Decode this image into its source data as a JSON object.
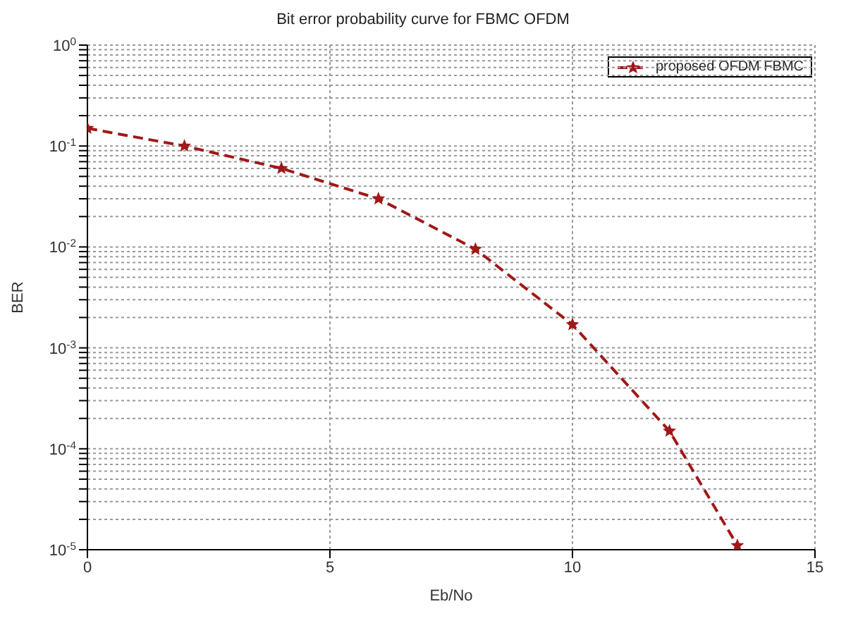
{
  "chart_data": {
    "type": "line",
    "title": "Bit error probability curve for  FBMC OFDM",
    "xlabel": "Eb/No",
    "ylabel": "BER",
    "x": [
      0,
      2,
      4,
      6,
      8,
      10,
      12,
      13.4
    ],
    "series": [
      {
        "name": "proposed OFDM FBMC",
        "color": "#a01818",
        "values": [
          0.15,
          0.1,
          0.06,
          0.03,
          0.0095,
          0.0017,
          0.00015,
          1.1e-05
        ]
      }
    ],
    "xlim": [
      0,
      15
    ],
    "xticks": [
      0,
      5,
      10,
      15
    ],
    "ylim": [
      1e-05,
      1
    ],
    "yticks": [
      {
        "value": 1,
        "label": "10$^{0}$"
      },
      {
        "value": 0.9,
        "label": null
      },
      {
        "value": 0.8,
        "label": null
      },
      {
        "value": 0.7,
        "label": null
      },
      {
        "value": 0.6,
        "label": null
      },
      {
        "value": 0.5,
        "label": null
      },
      {
        "value": 0.4,
        "label": null
      },
      {
        "value": 0.3,
        "label": null
      },
      {
        "value": 0.2,
        "label": null
      },
      {
        "value": 0.1,
        "label": "10$^{-1}$"
      },
      {
        "value": 0.09,
        "label": null
      },
      {
        "value": 0.08,
        "label": null
      },
      {
        "value": 0.07,
        "label": null
      },
      {
        "value": 0.06,
        "label": null
      },
      {
        "value": 0.05,
        "label": null
      },
      {
        "value": 0.04,
        "label": null
      },
      {
        "value": 0.03,
        "label": null
      },
      {
        "value": 0.02,
        "label": null
      },
      {
        "value": 0.01,
        "label": "10$^{-2}$"
      },
      {
        "value": 0.009,
        "label": null
      },
      {
        "value": 0.008,
        "label": null
      },
      {
        "value": 0.007,
        "label": null
      },
      {
        "value": 0.006,
        "label": null
      },
      {
        "value": 0.005,
        "label": null
      },
      {
        "value": 0.004,
        "label": null
      },
      {
        "value": 0.003,
        "label": null
      },
      {
        "value": 0.002,
        "label": null
      },
      {
        "value": 0.001,
        "label": "10$^{-3}$"
      },
      {
        "value": 0.0009,
        "label": null
      },
      {
        "value": 0.0008,
        "label": null
      },
      {
        "value": 0.0007,
        "label": null
      },
      {
        "value": 0.0006,
        "label": null
      },
      {
        "value": 0.0005,
        "label": null
      },
      {
        "value": 0.0004,
        "label": null
      },
      {
        "value": 0.0003,
        "label": null
      },
      {
        "value": 0.0002,
        "label": null
      },
      {
        "value": 0.0001,
        "label": "10$^{-4}$"
      },
      {
        "value": 9e-05,
        "label": null
      },
      {
        "value": 8e-05,
        "label": null
      },
      {
        "value": 7e-05,
        "label": null
      },
      {
        "value": 6e-05,
        "label": null
      },
      {
        "value": 5e-05,
        "label": null
      },
      {
        "value": 4e-05,
        "label": null
      },
      {
        "value": 3e-05,
        "label": null
      },
      {
        "value": 2e-05,
        "label": null
      },
      {
        "value": 1e-05,
        "label": "10$^{-5}$"
      }
    ],
    "log": "y",
    "grid": true,
    "legend": "top right",
    "marker": "star",
    "line_style": "dashed"
  }
}
